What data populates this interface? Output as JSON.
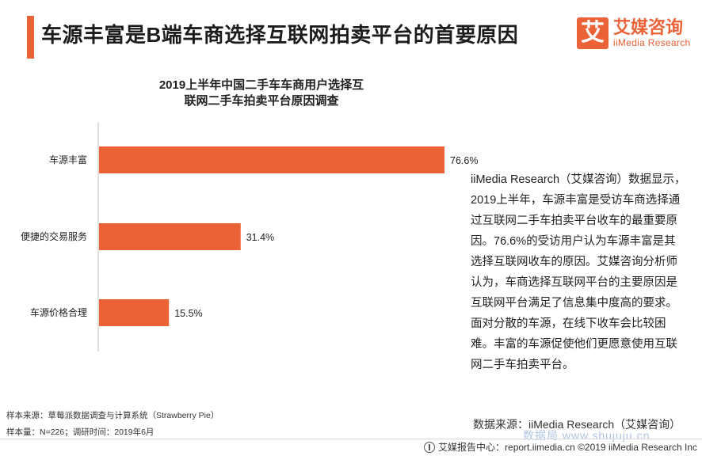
{
  "header": {
    "title": "车源丰富是B端车商选择互联网拍卖平台的首要原因",
    "brand_logo_char": "艾",
    "brand_cn": "艾媒咨询",
    "brand_en": "iiMedia Research",
    "accent_color": "#ea6235"
  },
  "chart_data": {
    "type": "bar",
    "orientation": "horizontal",
    "title_lines": [
      "2019上半年中国二手车车商用户选择互",
      "联网二手车拍卖平台原因调查"
    ],
    "categories": [
      "车源丰富",
      "便捷的交易服务",
      "车源价格合理"
    ],
    "values": [
      76.6,
      31.4,
      15.5
    ],
    "value_labels": [
      "76.6%",
      "31.4%",
      "15.5%"
    ],
    "unit": "%",
    "xlim": [
      0,
      100
    ],
    "bar_color": "#ea6235",
    "grid": false,
    "legend": "none"
  },
  "description": "iiMedia Research（艾媒咨询）数据显示， 2019上半年，车源丰富是受访车商选择通过互联网二手车拍卖平台收车的最重要原因。76.6%的受访用户认为车源丰富是其选择互联网收车的原因。艾媒咨询分析师认为，车商选择互联网平台的主要原因是互联网平台满足了信息集中度高的要求。面对分散的车源，在线下收车会比较困难。丰富的车源促使他们更愿意使用互联网二手车拍卖平台。",
  "footnotes": {
    "source": "样本来源：草莓派数据调查与计算系统（Strawberry Pie）",
    "sample": "样本量：N=226；调研时间：2019年6月"
  },
  "data_source": "数据来源：iiMedia Research（艾媒咨询）",
  "footer": {
    "report_center": "艾媒报告中心：report.iimedia.cn  ©2019  iiMedia Research Inc"
  },
  "watermark": "数据局 www.shujuju.cn"
}
